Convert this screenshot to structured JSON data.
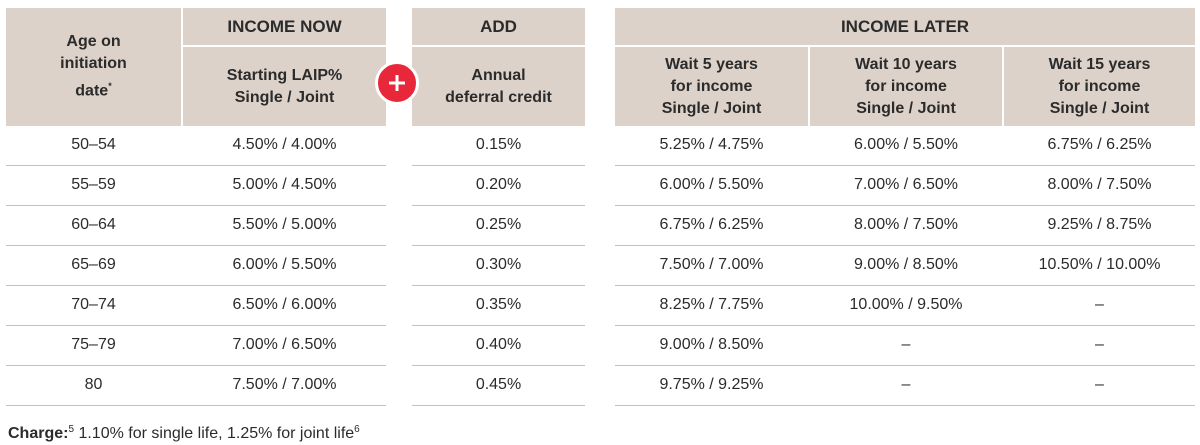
{
  "headers": {
    "age": [
      "Age on",
      "initiation",
      "date"
    ],
    "age_marker": "*",
    "income_now": "INCOME NOW",
    "income_now_sub": [
      "Starting LAIP%",
      "Single / Joint"
    ],
    "add": "ADD",
    "add_sub": [
      "Annual",
      "deferral credit"
    ],
    "income_later": "INCOME LATER",
    "wait5": [
      "Wait 5 years",
      "for income",
      "Single / Joint"
    ],
    "wait10": [
      "Wait 10 years",
      "for income",
      "Single / Joint"
    ],
    "wait15": [
      "Wait 15 years",
      "for income",
      "Single / Joint"
    ]
  },
  "plus_icon": "plus-icon",
  "accent_color": "#e8283a",
  "header_bg": "#ddd2c9",
  "rows": [
    {
      "age": "50–54",
      "now": "4.50% / 4.00%",
      "credit": "0.15%",
      "w5": "5.25% / 4.75%",
      "w10": "6.00% / 5.50%",
      "w15": "6.75% / 6.25%"
    },
    {
      "age": "55–59",
      "now": "5.00% / 4.50%",
      "credit": "0.20%",
      "w5": "6.00% / 5.50%",
      "w10": "7.00% / 6.50%",
      "w15": "8.00% / 7.50%"
    },
    {
      "age": "60–64",
      "now": "5.50% / 5.00%",
      "credit": "0.25%",
      "w5": "6.75% / 6.25%",
      "w10": "8.00% / 7.50%",
      "w15": "9.25% / 8.75%"
    },
    {
      "age": "65–69",
      "now": "6.00% / 5.50%",
      "credit": "0.30%",
      "w5": "7.50% / 7.00%",
      "w10": "9.00% / 8.50%",
      "w15": "10.50% / 10.00%"
    },
    {
      "age": "70–74",
      "now": "6.50% / 6.00%",
      "credit": "0.35%",
      "w5": "8.25% / 7.75%",
      "w10": "10.00% / 9.50%",
      "w15": "–"
    },
    {
      "age": "75–79",
      "now": "7.00% / 6.50%",
      "credit": "0.40%",
      "w5": "9.00% / 8.50%",
      "w10": "–",
      "w15": "–"
    },
    {
      "age": "80",
      "now": "7.50% / 7.00%",
      "credit": "0.45%",
      "w5": "9.75% / 9.25%",
      "w10": "–",
      "w15": "–"
    }
  ],
  "footer": {
    "label": "Charge:",
    "label_sup": "5",
    "text": " 1.10% for single life, 1.25% for joint life",
    "text_sup": "6"
  }
}
